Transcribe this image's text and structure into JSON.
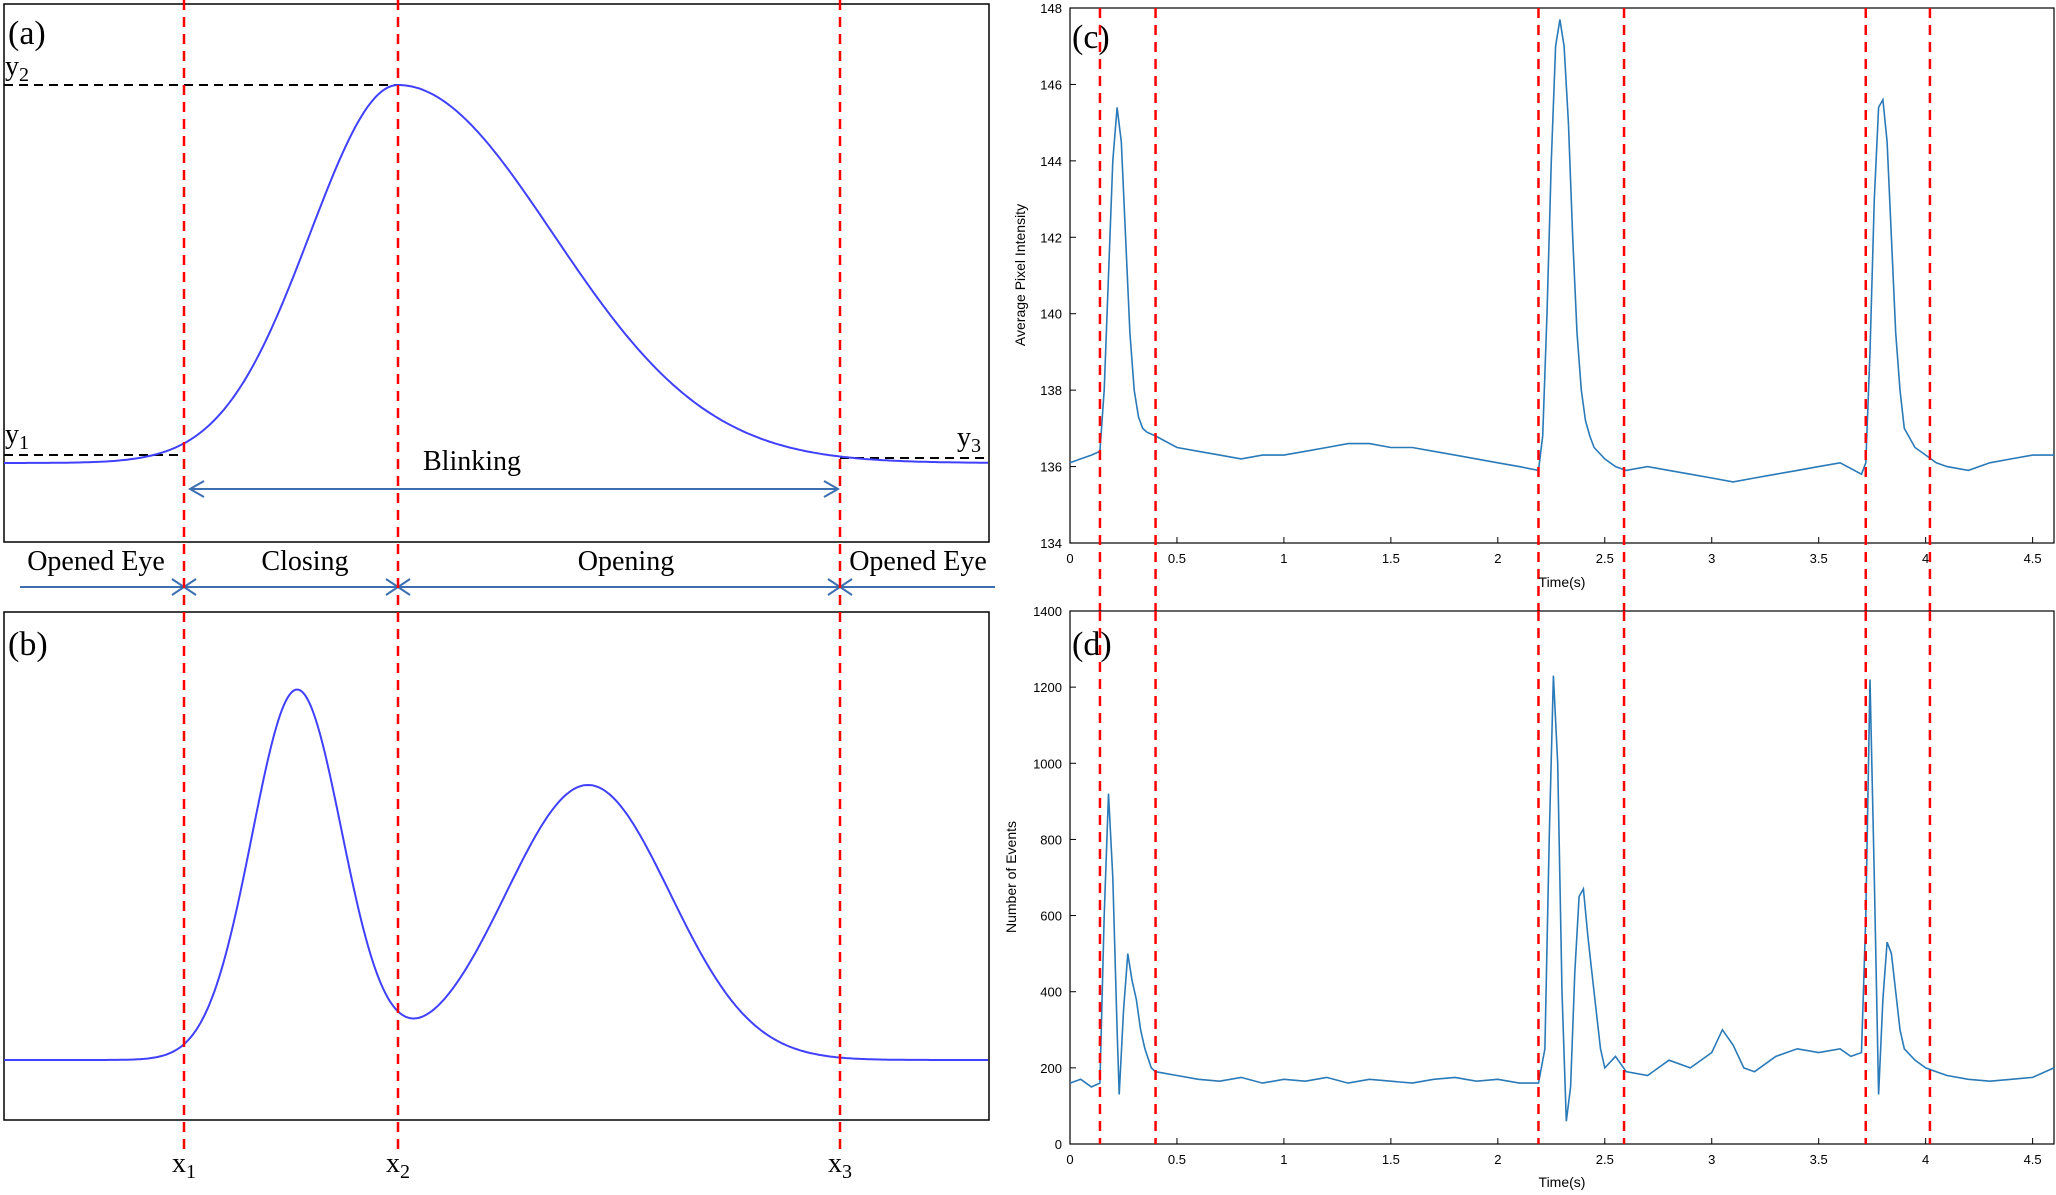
{
  "colors": {
    "schematic_curve": "#4040ff",
    "signal_curve": "#2a7ab8",
    "marker_line": "#ff0000",
    "level_line": "#000000",
    "phase_arrow": "#3b6fb0"
  },
  "panel_a": {
    "tag": "(a)",
    "y_labels": {
      "y1": {
        "main": "y",
        "sub": "1"
      },
      "y2": {
        "main": "y",
        "sub": "2"
      },
      "y3": {
        "main": "y",
        "sub": "3"
      }
    },
    "blink_label": "Blinking"
  },
  "phases": [
    {
      "label": "Opened Eye"
    },
    {
      "label": "Closing"
    },
    {
      "label": "Opening"
    },
    {
      "label": "Opened Eye"
    }
  ],
  "panel_b": {
    "tag": "(b)",
    "x_labels": {
      "x1": {
        "main": "x",
        "sub": "1"
      },
      "x2": {
        "main": "x",
        "sub": "2"
      },
      "x3": {
        "main": "x",
        "sub": "3"
      }
    }
  },
  "chart_data": [
    {
      "panel": "(c)",
      "type": "line",
      "title": "",
      "xlabel": "Time(s)",
      "ylabel": "Average Pixel Intensity",
      "xlim": [
        0,
        4.6
      ],
      "ylim": [
        134,
        148
      ],
      "x_ticks": [
        "0",
        "0.5",
        "1",
        "1.5",
        "2",
        "2.5",
        "3",
        "3.5",
        "4",
        "4.5"
      ],
      "y_ticks": [
        "134",
        "136",
        "138",
        "140",
        "142",
        "144",
        "146",
        "148"
      ],
      "marker_lines_x": [
        0.14,
        0.4,
        2.19,
        2.59,
        3.72,
        4.02
      ],
      "series": [
        {
          "x": [
            0,
            0.05,
            0.1,
            0.14,
            0.16,
            0.18,
            0.2,
            0.22,
            0.24,
            0.26,
            0.28,
            0.3,
            0.32,
            0.34,
            0.36,
            0.4,
            0.5,
            0.6,
            0.7,
            0.8,
            0.9,
            1.0,
            1.1,
            1.2,
            1.3,
            1.4,
            1.5,
            1.6,
            1.7,
            1.8,
            1.9,
            2.0,
            2.1,
            2.19,
            2.21,
            2.23,
            2.25,
            2.27,
            2.29,
            2.31,
            2.33,
            2.35,
            2.37,
            2.39,
            2.41,
            2.43,
            2.45,
            2.5,
            2.55,
            2.6,
            2.7,
            2.8,
            2.9,
            3.0,
            3.1,
            3.2,
            3.3,
            3.4,
            3.5,
            3.6,
            3.7,
            3.72,
            3.74,
            3.76,
            3.78,
            3.8,
            3.82,
            3.84,
            3.86,
            3.88,
            3.9,
            3.95,
            4.0,
            4.05,
            4.1,
            4.2,
            4.3,
            4.4,
            4.5,
            4.6
          ],
          "values": [
            136.1,
            136.2,
            136.3,
            136.4,
            138.0,
            141.0,
            144.0,
            145.4,
            144.5,
            142.0,
            139.5,
            138.0,
            137.3,
            137.0,
            136.9,
            136.8,
            136.5,
            136.4,
            136.3,
            136.2,
            136.3,
            136.3,
            136.4,
            136.5,
            136.6,
            136.6,
            136.5,
            136.5,
            136.4,
            136.3,
            136.2,
            136.1,
            136.0,
            135.9,
            136.8,
            140.0,
            144.0,
            147.0,
            147.7,
            147.0,
            145.0,
            142.0,
            139.5,
            138.0,
            137.2,
            136.8,
            136.5,
            136.2,
            136.0,
            135.9,
            136.0,
            135.9,
            135.8,
            135.7,
            135.6,
            135.7,
            135.8,
            135.9,
            136.0,
            136.1,
            135.8,
            136.1,
            139.0,
            143.0,
            145.4,
            145.6,
            144.5,
            142.0,
            139.5,
            138.0,
            137.0,
            136.5,
            136.3,
            136.1,
            136.0,
            135.9,
            136.1,
            136.2,
            136.3,
            136.3
          ]
        }
      ]
    },
    {
      "panel": "(d)",
      "type": "line",
      "title": "",
      "xlabel": "Time(s)",
      "ylabel": "Number of Events",
      "xlim": [
        0,
        4.6
      ],
      "ylim": [
        0,
        1400
      ],
      "x_ticks": [
        "0",
        "0.5",
        "1",
        "1.5",
        "2",
        "2.5",
        "3",
        "3.5",
        "4",
        "4.5"
      ],
      "y_ticks": [
        "0",
        "200",
        "400",
        "600",
        "800",
        "1000",
        "1200",
        "1400"
      ],
      "marker_lines_x": [
        0.14,
        0.4,
        2.19,
        2.59,
        3.72,
        4.02
      ],
      "series": [
        {
          "x": [
            0,
            0.05,
            0.1,
            0.14,
            0.16,
            0.18,
            0.2,
            0.22,
            0.23,
            0.25,
            0.27,
            0.29,
            0.31,
            0.33,
            0.35,
            0.38,
            0.4,
            0.5,
            0.6,
            0.7,
            0.8,
            0.9,
            1.0,
            1.1,
            1.2,
            1.3,
            1.4,
            1.5,
            1.6,
            1.7,
            1.8,
            1.9,
            2.0,
            2.1,
            2.19,
            2.22,
            2.24,
            2.26,
            2.28,
            2.3,
            2.32,
            2.34,
            2.36,
            2.38,
            2.4,
            2.42,
            2.44,
            2.46,
            2.48,
            2.5,
            2.55,
            2.6,
            2.7,
            2.8,
            2.9,
            3.0,
            3.05,
            3.1,
            3.15,
            3.2,
            3.3,
            3.4,
            3.5,
            3.6,
            3.65,
            3.7,
            3.72,
            3.74,
            3.76,
            3.78,
            3.8,
            3.82,
            3.84,
            3.86,
            3.88,
            3.9,
            3.95,
            4.0,
            4.05,
            4.1,
            4.2,
            4.3,
            4.4,
            4.5,
            4.6
          ],
          "values": [
            160,
            170,
            150,
            160,
            600,
            920,
            700,
            300,
            130,
            350,
            500,
            430,
            380,
            300,
            250,
            200,
            190,
            180,
            170,
            165,
            175,
            160,
            170,
            165,
            175,
            160,
            170,
            165,
            160,
            170,
            175,
            165,
            170,
            160,
            160,
            250,
            800,
            1230,
            1000,
            400,
            60,
            150,
            450,
            650,
            670,
            550,
            450,
            350,
            250,
            200,
            230,
            190,
            180,
            220,
            200,
            240,
            300,
            260,
            200,
            190,
            230,
            250,
            240,
            250,
            230,
            240,
            600,
            1220,
            700,
            130,
            380,
            530,
            500,
            400,
            300,
            250,
            220,
            200,
            190,
            180,
            170,
            165,
            170,
            175,
            200
          ]
        }
      ]
    }
  ]
}
